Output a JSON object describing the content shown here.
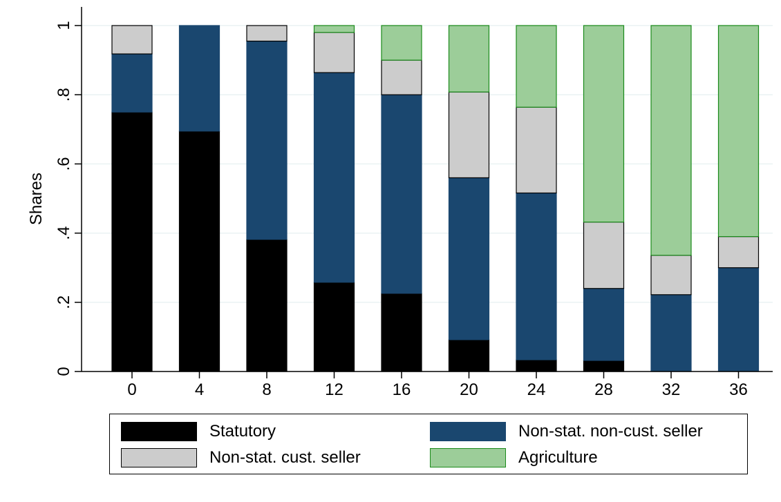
{
  "chart_data": {
    "type": "bar",
    "stacked": true,
    "title": "",
    "xlabel": "",
    "ylabel": "Shares",
    "ylim": [
      0,
      1
    ],
    "y_ticks": [
      0,
      0.2,
      0.4,
      0.6,
      0.8,
      1
    ],
    "y_tick_labels": [
      "0",
      ".2",
      ".4",
      ".6",
      ".8",
      "1"
    ],
    "categories": [
      "0",
      "4",
      "8",
      "12",
      "16",
      "20",
      "24",
      "28",
      "32",
      "36"
    ],
    "grid": true,
    "legend_position": "bottom",
    "series": [
      {
        "name": "Statutory",
        "color": "#000000",
        "edge": "#000000",
        "values": [
          0.75,
          0.695,
          0.382,
          0.258,
          0.226,
          0.092,
          0.034,
          0.032,
          0.0,
          0.0
        ]
      },
      {
        "name": "Non-stat. non-cust. seller",
        "color": "#1a476f",
        "edge": "#1a476f",
        "values": [
          0.168,
          0.305,
          0.573,
          0.606,
          0.574,
          0.468,
          0.482,
          0.208,
          0.222,
          0.3
        ]
      },
      {
        "name": "Non-stat. cust. seller",
        "color": "#cccccc",
        "edge": "#000000",
        "values": [
          0.082,
          0.0,
          0.045,
          0.116,
          0.1,
          0.248,
          0.248,
          0.192,
          0.114,
          0.09
        ]
      },
      {
        "name": "Agriculture",
        "color": "#9ccd99",
        "edge": "#1a8a1a",
        "values": [
          0.0,
          0.0,
          0.0,
          0.02,
          0.1,
          0.192,
          0.236,
          0.568,
          0.664,
          0.61
        ]
      }
    ]
  },
  "legend": {
    "items": [
      {
        "label": "Statutory",
        "color": "#000000",
        "edge": "#000000",
        "name": "legend-statutory"
      },
      {
        "label": "Non-stat. non-cust. seller",
        "color": "#1a476f",
        "edge": "#1a476f",
        "name": "legend-non-stat-non-cust-seller"
      },
      {
        "label": "Non-stat. cust. seller",
        "color": "#cccccc",
        "edge": "#000000",
        "name": "legend-non-stat-cust-seller"
      },
      {
        "label": "Agriculture",
        "color": "#9ccd99",
        "edge": "#1a8a1a",
        "name": "legend-agriculture"
      }
    ]
  }
}
